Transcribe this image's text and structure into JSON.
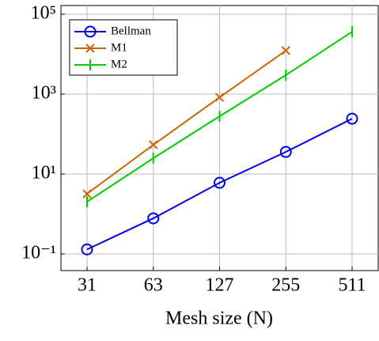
{
  "chart_data": {
    "type": "line",
    "xlabel": "Mesh size (N)",
    "categories": [
      "31",
      "63",
      "127",
      "255",
      "511"
    ],
    "log_y": true,
    "grid": true,
    "legend": "upper-left",
    "ylim": [
      0.0384,
      165000
    ],
    "yticks": [
      {
        "value": 0.1,
        "label": "10⁻¹"
      },
      {
        "value": 10,
        "label": "10¹"
      },
      {
        "value": 1000,
        "label": "10³"
      },
      {
        "value": 100000,
        "label": "10⁵"
      }
    ],
    "series": [
      {
        "name": "Bellman",
        "color": "#0000e0",
        "marker": "circle",
        "values": [
          0.13,
          0.78,
          6.05,
          35.8,
          243
        ]
      },
      {
        "name": "M1",
        "color": "#cc6600",
        "marker": "x",
        "values": [
          3.2,
          54,
          832,
          12300,
          null
        ]
      },
      {
        "name": "M2",
        "color": "#00cc00",
        "marker": "bar",
        "values": [
          2.03,
          24.9,
          279,
          2990,
          36600
        ]
      }
    ]
  }
}
